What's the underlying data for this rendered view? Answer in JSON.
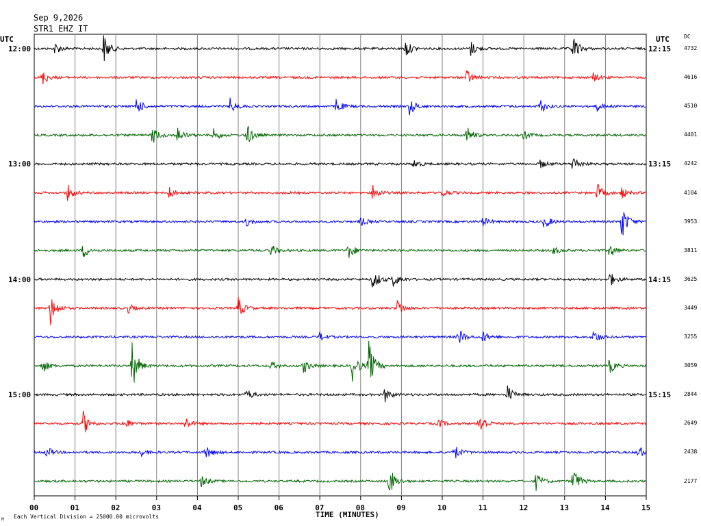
{
  "header": {
    "date": "Sep 9,2026",
    "station": "STR1 EHZ IT"
  },
  "left_timezone": "UTC",
  "right_timezone": "UTC",
  "dc_label": "DC",
  "footer": {
    "xlabel": "TIME (MINUTES)",
    "scale_note": "Each Vertical Division = 25000.00 microvolts",
    "corner_mark": "M"
  },
  "chart_data": {
    "type": "line",
    "title": "",
    "xlabel": "TIME (MINUTES)",
    "ylabel": "",
    "x_ticks": [
      "00",
      "01",
      "02",
      "03",
      "04",
      "05",
      "06",
      "07",
      "08",
      "09",
      "10",
      "11",
      "12",
      "13",
      "14",
      "15"
    ],
    "xlim": [
      0,
      15
    ],
    "grid": true,
    "trace_colors": [
      "#000000",
      "#ff0000",
      "#0000ff",
      "#006400"
    ],
    "left_time_labels": [
      {
        "trace": 0,
        "label": "12:00"
      },
      {
        "trace": 4,
        "label": "13:00"
      },
      {
        "trace": 8,
        "label": "14:00"
      },
      {
        "trace": 12,
        "label": "15:00"
      }
    ],
    "right_time_labels": [
      {
        "trace": 0,
        "label": "12:15"
      },
      {
        "trace": 4,
        "label": "13:15"
      },
      {
        "trace": 8,
        "label": "14:15"
      },
      {
        "trace": 12,
        "label": "15:15"
      }
    ],
    "dc_values": [
      "4732",
      "4616",
      "4510",
      "4401",
      "4242",
      "4104",
      "3953",
      "3811",
      "3625",
      "3449",
      "3255",
      "3059",
      "2844",
      "2649",
      "2438",
      "2177"
    ],
    "events": [
      [
        [
          0.5,
          0.4
        ],
        [
          1.7,
          1.0
        ],
        [
          9.1,
          0.6
        ],
        [
          10.7,
          0.5
        ],
        [
          13.2,
          0.9
        ]
      ],
      [
        [
          0.2,
          0.5
        ],
        [
          10.6,
          0.5
        ],
        [
          13.7,
          0.3
        ]
      ],
      [
        [
          2.5,
          0.6
        ],
        [
          4.8,
          0.5
        ],
        [
          7.4,
          0.5
        ],
        [
          9.2,
          0.6
        ],
        [
          12.4,
          0.5
        ],
        [
          13.8,
          0.3
        ]
      ],
      [
        [
          2.9,
          0.6
        ],
        [
          3.5,
          0.6
        ],
        [
          4.4,
          0.4
        ],
        [
          5.2,
          0.8
        ],
        [
          10.6,
          0.6
        ],
        [
          12.0,
          0.3
        ]
      ],
      [
        [
          9.3,
          0.3
        ],
        [
          12.4,
          0.3
        ],
        [
          13.2,
          0.6
        ]
      ],
      [
        [
          0.8,
          0.6
        ],
        [
          3.3,
          0.4
        ],
        [
          8.3,
          0.6
        ],
        [
          10.0,
          0.3
        ],
        [
          13.8,
          0.6
        ],
        [
          14.4,
          0.4
        ]
      ],
      [
        [
          5.2,
          0.3
        ],
        [
          8.0,
          0.3
        ],
        [
          11.0,
          0.3
        ],
        [
          12.5,
          0.5
        ],
        [
          14.4,
          1.2
        ]
      ],
      [
        [
          1.2,
          0.5
        ],
        [
          5.8,
          0.4
        ],
        [
          7.7,
          0.6
        ],
        [
          12.7,
          0.3
        ],
        [
          14.1,
          0.5
        ]
      ],
      [
        [
          8.3,
          0.8
        ],
        [
          8.8,
          0.5
        ],
        [
          14.1,
          0.5
        ]
      ],
      [
        [
          0.4,
          1.1
        ],
        [
          2.3,
          0.3
        ],
        [
          5.0,
          0.7
        ],
        [
          8.9,
          0.6
        ]
      ],
      [
        [
          7.0,
          0.3
        ],
        [
          10.4,
          0.6
        ],
        [
          11.0,
          0.4
        ],
        [
          13.7,
          0.5
        ]
      ],
      [
        [
          0.2,
          0.5
        ],
        [
          2.4,
          1.6
        ],
        [
          5.8,
          0.3
        ],
        [
          6.6,
          0.5
        ],
        [
          7.8,
          1.0
        ],
        [
          8.2,
          1.6
        ],
        [
          14.1,
          0.5
        ]
      ],
      [
        [
          5.2,
          0.4
        ],
        [
          8.6,
          0.5
        ],
        [
          11.6,
          0.6
        ]
      ],
      [
        [
          1.2,
          0.8
        ],
        [
          2.2,
          0.4
        ],
        [
          3.7,
          0.4
        ],
        [
          9.9,
          0.3
        ],
        [
          10.9,
          0.9
        ]
      ],
      [
        [
          0.3,
          0.4
        ],
        [
          2.6,
          0.3
        ],
        [
          4.2,
          0.5
        ],
        [
          10.3,
          0.5
        ],
        [
          14.8,
          0.5
        ]
      ],
      [
        [
          4.1,
          0.4
        ],
        [
          8.7,
          1.0
        ],
        [
          12.3,
          0.6
        ],
        [
          13.2,
          1.0
        ]
      ]
    ]
  }
}
